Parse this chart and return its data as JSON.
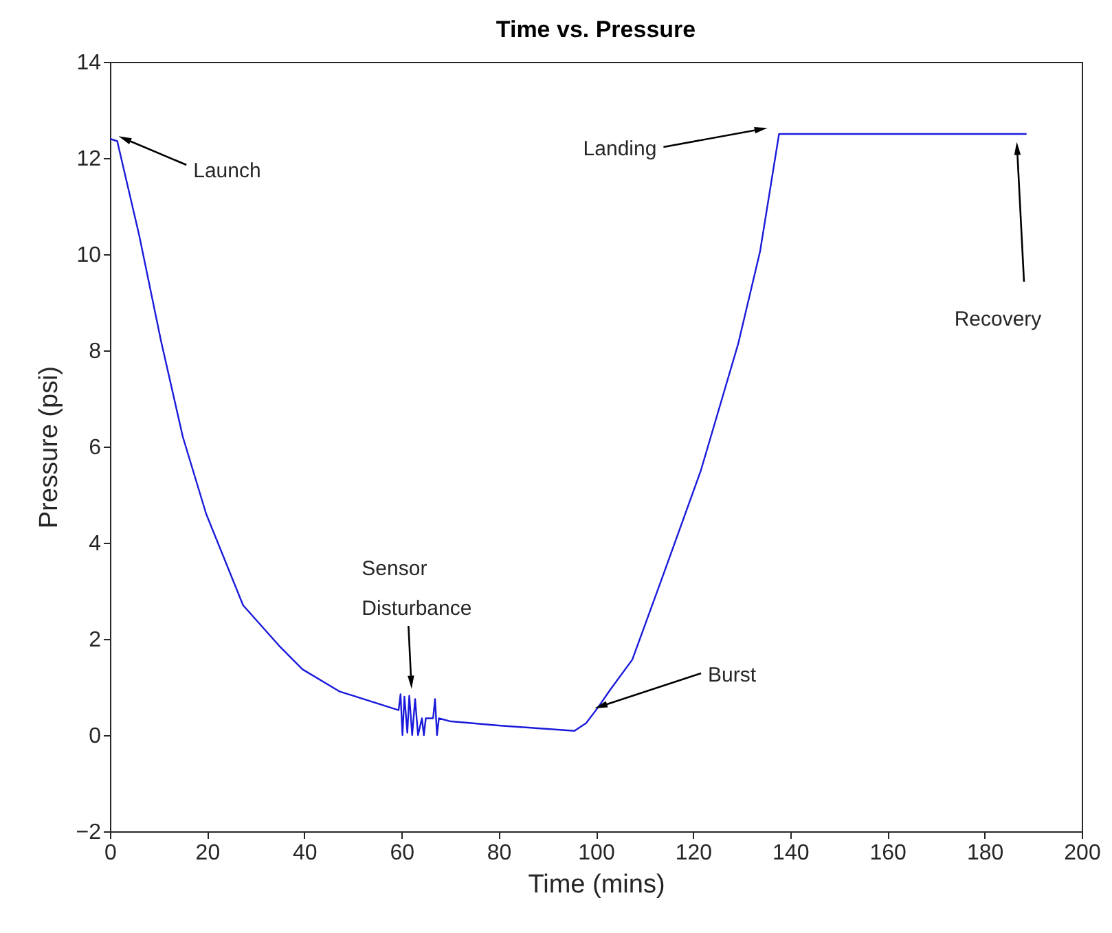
{
  "chart_data": {
    "type": "line",
    "title": "Time vs. Pressure",
    "xlabel": "Time (mins)",
    "ylabel": "Pressure (psi)",
    "x": [
      0,
      1.5,
      6,
      10.5,
      15,
      19.8,
      27.4,
      34.8,
      39.6,
      47.2,
      59.4,
      59.8,
      60.2,
      60.6,
      61.2,
      61.6,
      62.2,
      62.8,
      63.4,
      64.2,
      64.6,
      65,
      66.5,
      66.9,
      67.3,
      67.7,
      69.9,
      80,
      88.5,
      95.6,
      98,
      100.4,
      103,
      107.5,
      114,
      121.6,
      129.3,
      133.8,
      137.7,
      150,
      170,
      188.5
    ],
    "series": [
      {
        "color": "#1a1adb",
        "values": [
          12.4,
          12.35,
          10.4,
          8.2,
          6.2,
          4.6,
          2.7,
          1.86,
          1.37,
          0.91,
          0.52,
          0.85,
          0.0,
          0.8,
          0.05,
          0.82,
          0.0,
          0.75,
          0.0,
          0.35,
          0.0,
          0.35,
          0.35,
          0.75,
          0.0,
          0.35,
          0.29,
          0.2,
          0.14,
          0.09,
          0.25,
          0.57,
          0.95,
          1.57,
          3.37,
          5.5,
          8.14,
          10.06,
          12.5,
          12.5,
          12.5,
          12.5
        ]
      }
    ],
    "xlim": [
      0,
      200
    ],
    "ylim": [
      -2,
      14
    ],
    "xticks": [
      0,
      20,
      40,
      60,
      80,
      100,
      120,
      140,
      160,
      180,
      200
    ],
    "yticks": [
      -2,
      0,
      2,
      4,
      6,
      8,
      10,
      12,
      14
    ],
    "annotations": [
      {
        "text": "Launch",
        "x": 3,
        "y": 12.4
      },
      {
        "text": "Sensor\nDisturbance",
        "x": 62,
        "y": 1.1
      },
      {
        "text": "Burst",
        "x": 101,
        "y": 0.6
      },
      {
        "text": "Landing",
        "x": 134,
        "y": 12.6
      },
      {
        "text": "Recovery",
        "x": 186.7,
        "y": 12.2
      }
    ],
    "grid": false,
    "line_style": "solid",
    "marker": "none"
  }
}
